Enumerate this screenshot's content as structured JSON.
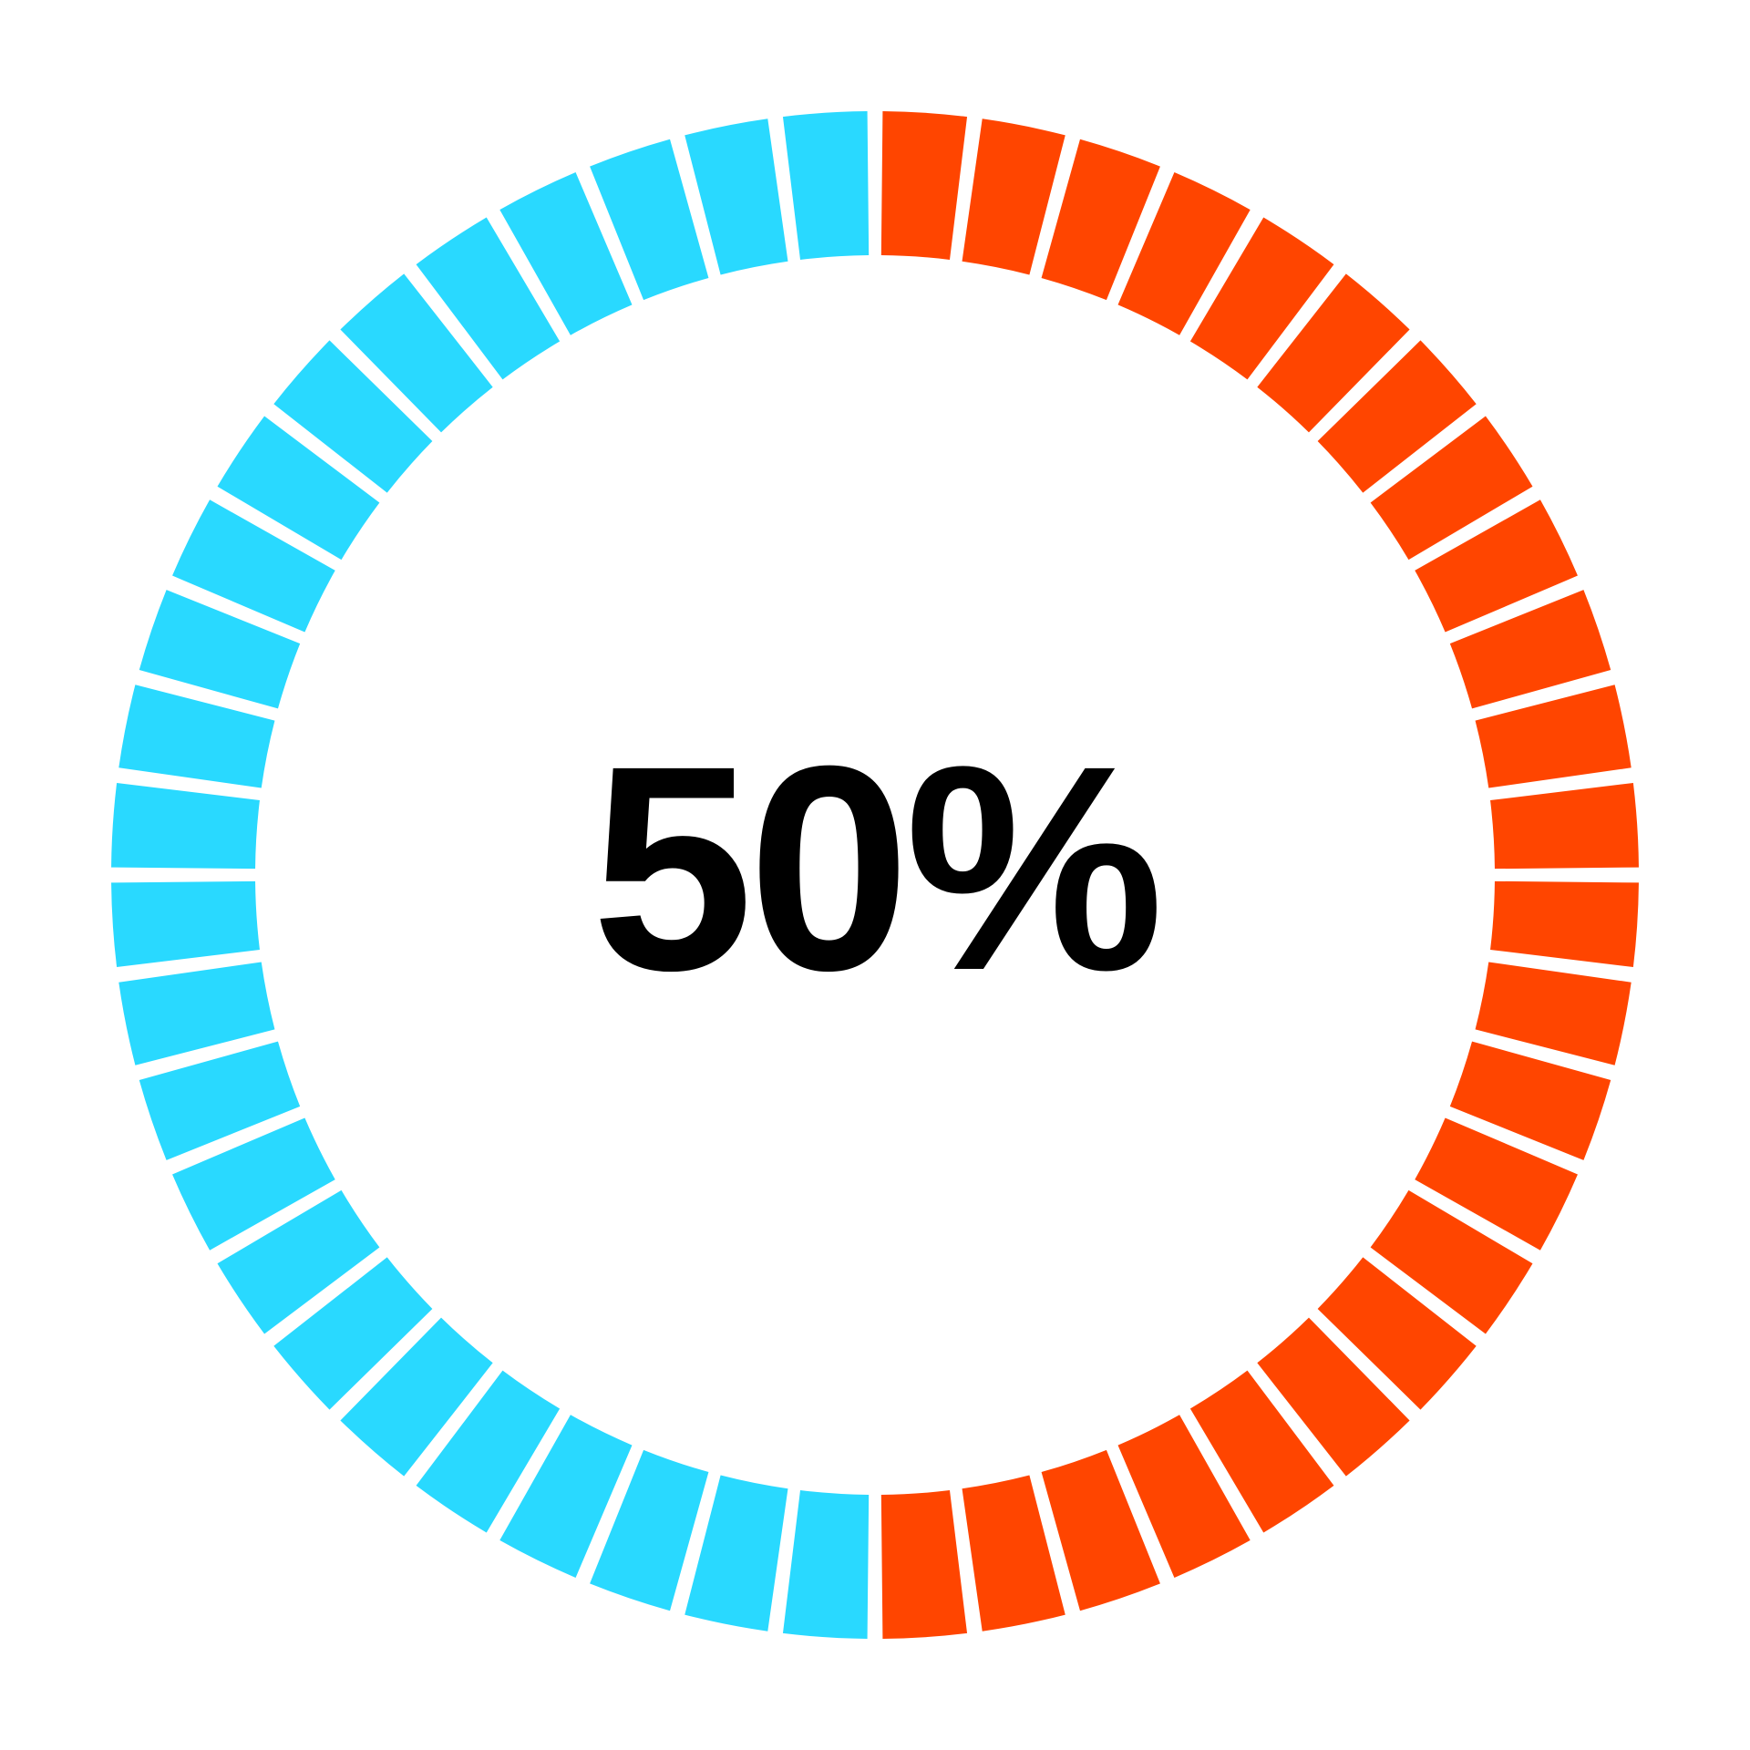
{
  "chart_data": {
    "type": "pie",
    "segments_total": 48,
    "segments_filled": 24,
    "value_percent": 50,
    "center_label": "50%",
    "series": [
      {
        "values": [
          50
        ],
        "color": "#ff4500"
      },
      {
        "values": [
          50
        ],
        "color": "#29d9ff"
      }
    ]
  },
  "colors": {
    "filled": "#ff4500",
    "remaining": "#29d9ff",
    "background": "#ffffff",
    "text": "#000000"
  }
}
